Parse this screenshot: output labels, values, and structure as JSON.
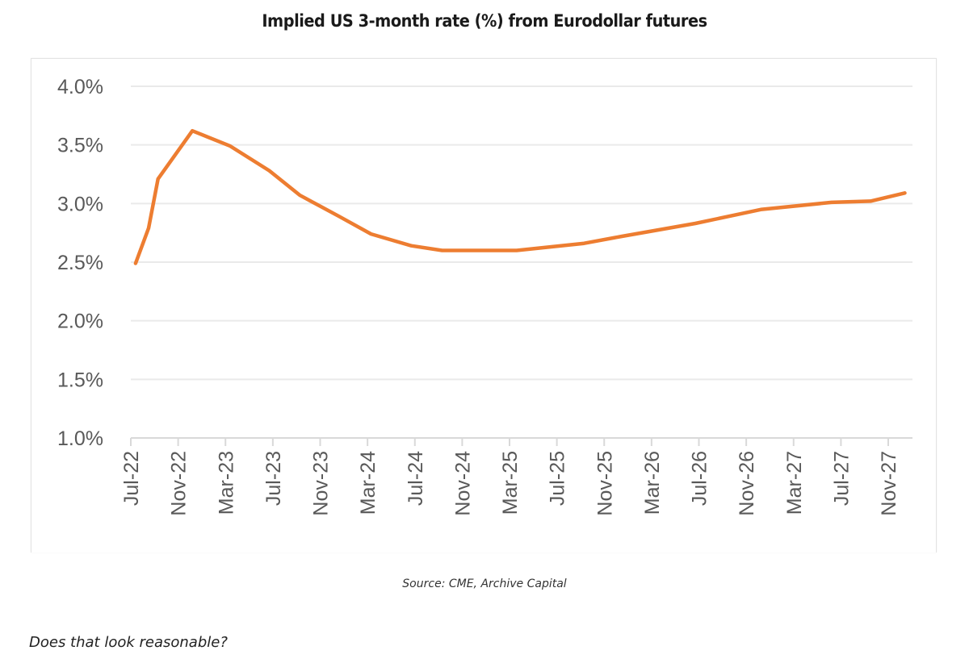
{
  "chart_data": {
    "type": "line",
    "title": "Implied US 3-month rate (%) from Eurodollar futures",
    "xlabel": "",
    "ylabel": "",
    "x_unit": "months since Jul-22",
    "ylim": [
      1.0,
      4.0
    ],
    "xlim": [
      0,
      64
    ],
    "grid": true,
    "legend": "none",
    "y_ticks": [
      {
        "value": 4.0,
        "label": "4.0%"
      },
      {
        "value": 3.5,
        "label": "3.5%"
      },
      {
        "value": 3.0,
        "label": "3.0%"
      },
      {
        "value": 2.5,
        "label": "2.5%"
      },
      {
        "value": 2.0,
        "label": "2.0%"
      },
      {
        "value": 1.5,
        "label": "1.5%"
      },
      {
        "value": 1.0,
        "label": "1.0%"
      }
    ],
    "x_ticks": [
      {
        "value": 0,
        "label": "Jul-22"
      },
      {
        "value": 4,
        "label": "Nov-22"
      },
      {
        "value": 8,
        "label": "Mar-23"
      },
      {
        "value": 12,
        "label": "Jul-23"
      },
      {
        "value": 16,
        "label": "Nov-23"
      },
      {
        "value": 20,
        "label": "Mar-24"
      },
      {
        "value": 24,
        "label": "Jul-24"
      },
      {
        "value": 28,
        "label": "Nov-24"
      },
      {
        "value": 32,
        "label": "Mar-25"
      },
      {
        "value": 36,
        "label": "Jul-25"
      },
      {
        "value": 40,
        "label": "Nov-25"
      },
      {
        "value": 44,
        "label": "Mar-26"
      },
      {
        "value": 48,
        "label": "Jul-26"
      },
      {
        "value": 52,
        "label": "Nov-26"
      },
      {
        "value": 56,
        "label": "Mar-27"
      },
      {
        "value": 60,
        "label": "Jul-27"
      },
      {
        "value": 64,
        "label": "Nov-27"
      }
    ],
    "series": [
      {
        "name": "Implied US 3-month rate",
        "color": "#ED7D31",
        "points": [
          {
            "x": 0.4,
            "y": 2.49
          },
          {
            "x": 1.5,
            "y": 2.79
          },
          {
            "x": 2.3,
            "y": 3.21
          },
          {
            "x": 5.2,
            "y": 3.62
          },
          {
            "x": 8.4,
            "y": 3.49
          },
          {
            "x": 11.7,
            "y": 3.28
          },
          {
            "x": 14.3,
            "y": 3.07
          },
          {
            "x": 17.6,
            "y": 2.89
          },
          {
            "x": 20.3,
            "y": 2.74
          },
          {
            "x": 23.7,
            "y": 2.64
          },
          {
            "x": 26.3,
            "y": 2.6
          },
          {
            "x": 32.6,
            "y": 2.6
          },
          {
            "x": 38.3,
            "y": 2.66
          },
          {
            "x": 41.5,
            "y": 2.72
          },
          {
            "x": 47.7,
            "y": 2.83
          },
          {
            "x": 53.3,
            "y": 2.95
          },
          {
            "x": 59.2,
            "y": 3.01
          },
          {
            "x": 62.5,
            "y": 3.02
          },
          {
            "x": 65.4,
            "y": 3.09
          }
        ]
      }
    ]
  },
  "source": "Source: CME, Archive Capital",
  "question": "Does that look reasonable?"
}
